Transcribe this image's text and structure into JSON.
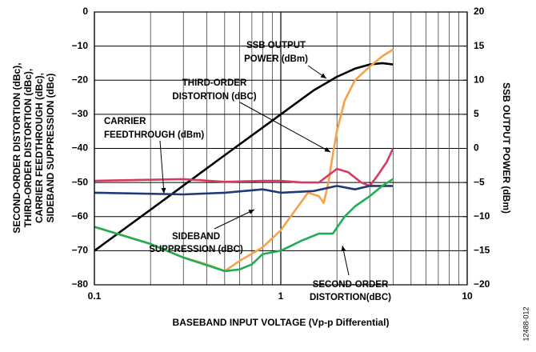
{
  "chart_data": {
    "type": "line",
    "xlabel": "BASEBAND INPUT VOLTAGE (Vp-p Differential)",
    "ylabel": [
      "SECOND-ORDER DISTORTION (dBc),",
      "THIRD-ORDER DISTORTION (dBc),",
      "CARRIER FEEDTHROUGH (dBc),",
      "SIDEBAND SUPPRESSION (dBc)"
    ],
    "y2label": "SSB OUTPUT POWER (dBm)",
    "figure_id": "12488-012",
    "xscale": "log",
    "grid": true,
    "xlim": [
      0.1,
      10
    ],
    "xticks": [
      0.1,
      1,
      10
    ],
    "ylim": [
      -80,
      0
    ],
    "yticks": [
      {
        "value": -80,
        "label": "−80"
      },
      {
        "value": -70,
        "label": "−70"
      },
      {
        "value": -60,
        "label": "−60"
      },
      {
        "value": -50,
        "label": "−50"
      },
      {
        "value": -40,
        "label": "−40"
      },
      {
        "value": -30,
        "label": "−30"
      },
      {
        "value": -20,
        "label": "−20"
      },
      {
        "value": -10,
        "label": "−10"
      },
      0
    ],
    "y2lim": [
      -20,
      20
    ],
    "y2ticks": [
      {
        "value": -20,
        "label": "−20"
      },
      {
        "value": -15,
        "label": "−15"
      },
      {
        "value": -10,
        "label": "−10"
      },
      {
        "value": -5,
        "label": "−5"
      },
      0,
      5,
      10,
      15,
      20
    ],
    "annotations": [
      {
        "lines": [
          "SSB OUTPUT",
          "POWER (dBm)"
        ]
      },
      {
        "lines": [
          "THIRD-ORDER",
          "DISTORTION (dBC)"
        ]
      },
      {
        "lines": [
          "CARRIER",
          "FEEDTHROUGH (dBm)"
        ]
      },
      {
        "lines": [
          "SIDEBAND",
          "SUPPRESSION (dBC)"
        ]
      },
      {
        "lines": [
          "SECOND-ORDER",
          "DISTORTION(dBC)"
        ]
      }
    ],
    "series": [
      {
        "name": "SSB OUTPUT POWER (dBm)",
        "color": "#000000",
        "axis": "y2",
        "x": [
          0.1,
          0.2,
          0.5,
          1,
          1.5,
          2,
          2.5,
          3,
          3.5,
          4
        ],
        "values": [
          -15,
          -9,
          -1,
          5,
          8.5,
          10.5,
          11.7,
          12.3,
          12.5,
          12.3
        ]
      },
      {
        "name": "THIRD-ORDER DISTORTION (dBC)",
        "color": "#f7a14a",
        "x": [
          0.1,
          0.2,
          0.3,
          0.4,
          0.5,
          0.6,
          0.8,
          1,
          1.2,
          1.4,
          1.6,
          1.7,
          1.8,
          1.9,
          2,
          2.2,
          2.5,
          3,
          3.5,
          4
        ],
        "values": [
          -63,
          -68,
          -72,
          -74,
          -76,
          -73,
          -69,
          -64,
          -58,
          -53,
          -54,
          -56,
          -50,
          -42,
          -35,
          -26,
          -20,
          -16,
          -13,
          -11
        ]
      },
      {
        "name": "CARRIER FEEDTHROUGH (dBm)",
        "color": "#d63a5e",
        "x": [
          0.1,
          0.3,
          0.5,
          0.8,
          1,
          1.3,
          1.6,
          2,
          2.3,
          2.7,
          3,
          3.3,
          3.7,
          4
        ],
        "values": [
          -49.5,
          -49,
          -49.8,
          -49.5,
          -49.5,
          -50,
          -50,
          -46,
          -47,
          -50,
          -51,
          -48,
          -44,
          -40
        ]
      },
      {
        "name": "SIDEBAND SUPPRESSION (dBC)",
        "color": "#1f3a7a",
        "x": [
          0.1,
          0.3,
          0.5,
          0.8,
          1,
          1.5,
          2,
          2.5,
          3,
          4
        ],
        "values": [
          -53,
          -53.5,
          -53,
          -52,
          -53,
          -52.5,
          -51,
          -52,
          -51,
          -51
        ]
      },
      {
        "name": "SECOND-ORDER DISTORTION(dBC)",
        "color": "#1fae55",
        "x": [
          0.1,
          0.2,
          0.3,
          0.5,
          0.6,
          0.7,
          0.8,
          1,
          1.3,
          1.6,
          1.9,
          2.2,
          2.5,
          3,
          3.5,
          4
        ],
        "values": [
          -63,
          -68,
          -72,
          -76,
          -75.5,
          -74,
          -71,
          -70,
          -67,
          -65,
          -65,
          -60,
          -57,
          -54,
          -51,
          -49
        ]
      }
    ]
  }
}
